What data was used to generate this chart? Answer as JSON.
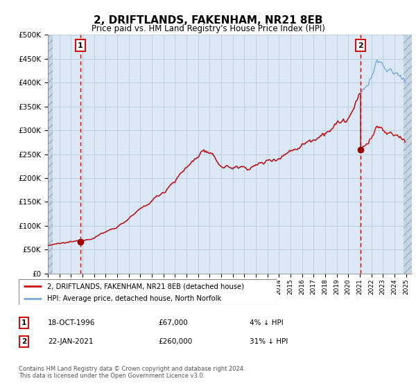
{
  "title": "2, DRIFTLANDS, FAKENHAM, NR21 8EB",
  "subtitle": "Price paid vs. HM Land Registry's House Price Index (HPI)",
  "sale1_date": "18-OCT-1996",
  "sale1_price": 67000,
  "sale2_date": "22-JAN-2021",
  "sale2_price": 260000,
  "sale1_pct": "4% ↓ HPI",
  "sale2_pct": "31% ↓ HPI",
  "legend_line1": "2, DRIFTLANDS, FAKENHAM, NR21 8EB (detached house)",
  "legend_line2": "HPI: Average price, detached house, North Norfolk",
  "footer": "Contains HM Land Registry data © Crown copyright and database right 2024.\nThis data is licensed under the Open Government Licence v3.0.",
  "hpi_color": "#7aaadd",
  "price_color": "#cc1111",
  "vline_color": "#cc1111",
  "dot_color": "#990000",
  "ylim_min": 0,
  "ylim_max": 500000,
  "plot_bg_color": "#dce8f5",
  "hatch_bg_color": "#c5d5e5",
  "grid_color": "#b8cad8",
  "sale1_year": 1996.8,
  "sale2_year": 2021.05,
  "hpi_base_1994": 62000,
  "hpi_base_scale": 1.0
}
